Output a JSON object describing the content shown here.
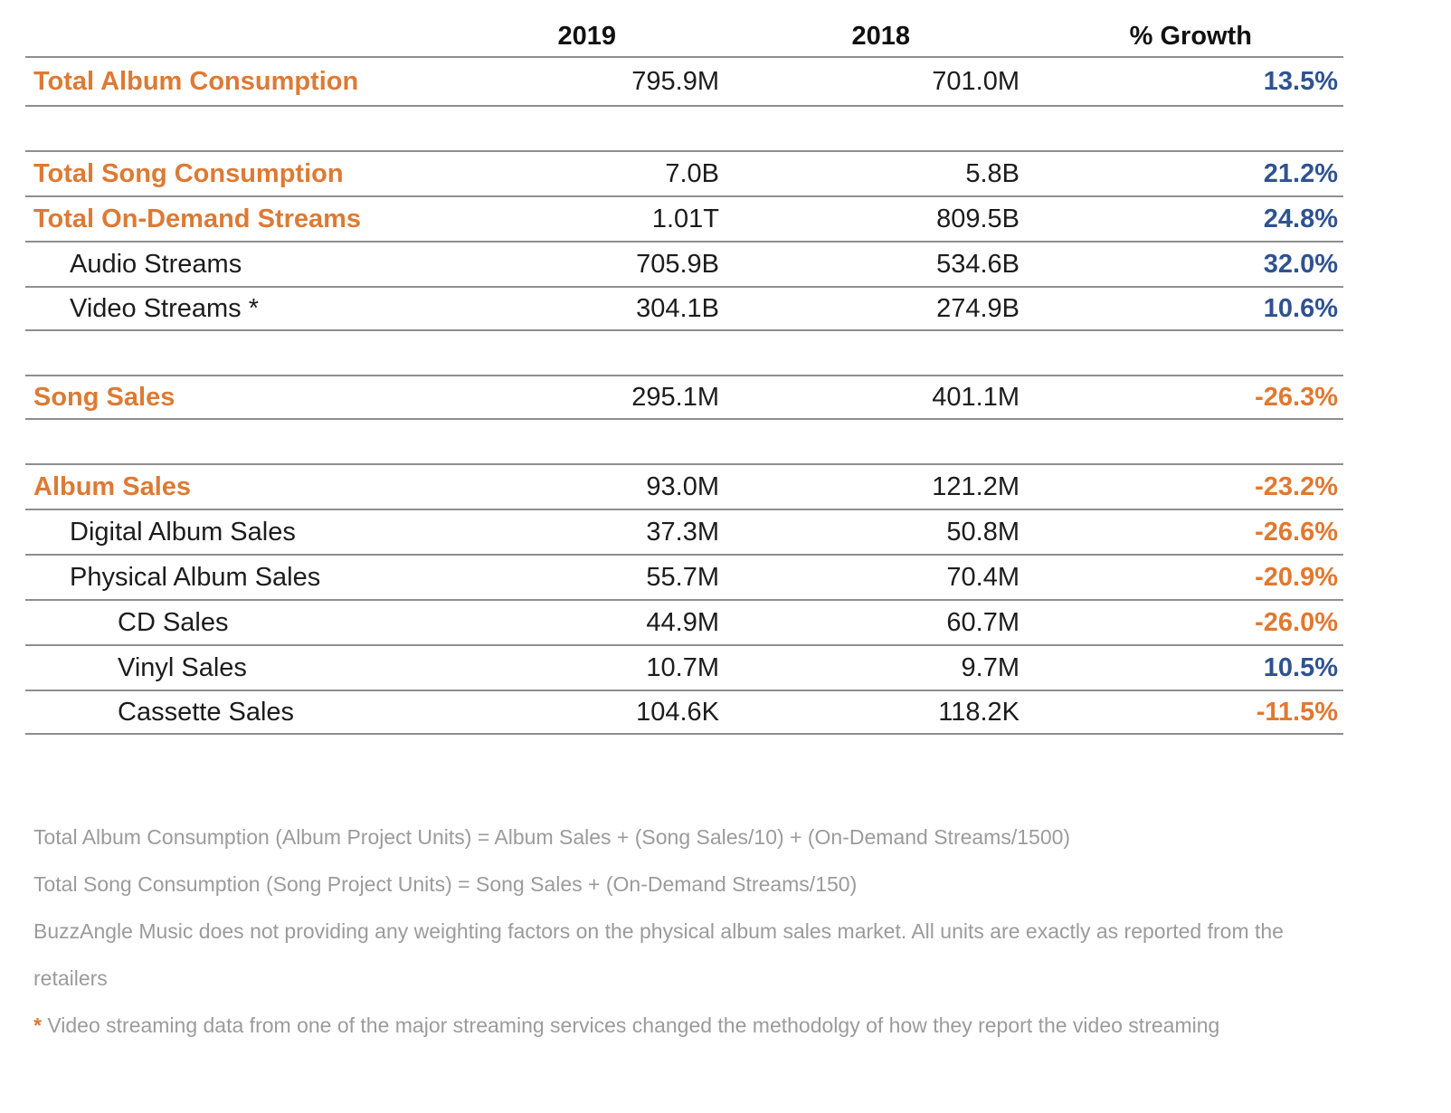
{
  "colors": {
    "category_orange": "#dd7a33",
    "negative_orange": "#e2782f",
    "positive_blue": "#2f5291",
    "rule_gray": "#8e8e8e",
    "footnote_gray": "#9b9b9b"
  },
  "table": {
    "column_headers": [
      "2019",
      "2018",
      "% Growth"
    ],
    "rows": [
      {
        "label": "Total Album Consumption",
        "level": 0,
        "category": true,
        "y2019": "795.9M",
        "y2018": "701.0M",
        "growth": "13.5%",
        "section_end": true
      },
      {
        "label": "Total Song Consumption",
        "level": 0,
        "category": true,
        "y2019": "7.0B",
        "y2018": "5.8B",
        "growth": "21.2%",
        "gap_before": true
      },
      {
        "label": "Total On-Demand Streams",
        "level": 0,
        "category": true,
        "y2019": "1.01T",
        "y2018": "809.5B",
        "growth": "24.8%"
      },
      {
        "label": "Audio Streams",
        "level": 1,
        "y2019": "705.9B",
        "y2018": "534.6B",
        "growth": "32.0%"
      },
      {
        "label": "Video Streams *",
        "level": 1,
        "y2019": "304.1B",
        "y2018": "274.9B",
        "growth": "10.6%",
        "section_end": true
      },
      {
        "label": "Song Sales",
        "level": 0,
        "category": true,
        "y2019": "295.1M",
        "y2018": "401.1M",
        "growth": "-26.3%",
        "gap_before": true,
        "section_end": true
      },
      {
        "label": "Album Sales",
        "level": 0,
        "category": true,
        "y2019": "93.0M",
        "y2018": "121.2M",
        "growth": "-23.2%",
        "gap_before": true
      },
      {
        "label": "Digital Album Sales",
        "level": 1,
        "y2019": "37.3M",
        "y2018": "50.8M",
        "growth": "-26.6%"
      },
      {
        "label": "Physical Album Sales",
        "level": 1,
        "y2019": "55.7M",
        "y2018": "70.4M",
        "growth": "-20.9%"
      },
      {
        "label": "CD Sales",
        "level": 2,
        "y2019": "44.9M",
        "y2018": "60.7M",
        "growth": "-26.0%"
      },
      {
        "label": "Vinyl Sales",
        "level": 2,
        "y2019": "10.7M",
        "y2018": "9.7M",
        "growth": "10.5%"
      },
      {
        "label": "Cassette Sales",
        "level": 2,
        "y2019": "104.6K",
        "y2018": "118.2K",
        "growth": "-11.5%",
        "section_end": true
      }
    ]
  },
  "footnotes": [
    {
      "text": "Total Album Consumption (Album Project Units) = Album Sales + (Song Sales/10) + (On-Demand Streams/1500)"
    },
    {
      "text": "Total Song Consumption (Song Project Units) = Song Sales + (On-Demand Streams/150)"
    },
    {
      "text": "BuzzAngle Music does not providing any weighting factors on the physical album sales market. All units are exactly as reported from the retailers"
    },
    {
      "prefix": "*",
      "text": "Video streaming data from one of the major streaming services changed the methodolgy of how they report the video streaming"
    }
  ]
}
